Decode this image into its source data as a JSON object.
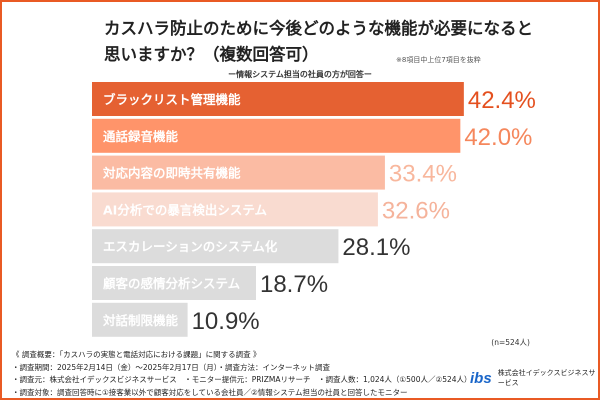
{
  "title_line1": "カスハラ防止のために今後どのような機能が必要になると",
  "title_line2": "思いますか？（複数回答可）",
  "note": "※8項目中上位7項目を抜粋",
  "subtitle": "ー情報システム担当の社員の方が回答ー",
  "sample": "(n=524人)",
  "footer": [
    "《 調査概要：「カスハラの実態と電話対応における課題」に関する調査 》",
    "・調査期間：2025年2月14日（金）〜2025年2月17日（月）・調査方法：インターネット調査",
    "・調査元：株式会社イデックスビジネスサービス　・モニター提供元：PRIZMAリサーチ　・調査人数：1,024人（①500人／②524人）",
    "・調査対象：調査回答時に①接客業以外で顧客対応をしている会社員／②情報システム担当の社員と回答したモニター"
  ],
  "logo": {
    "mark": "ibs",
    "text": "株式会社イデックスビジネスサービス"
  },
  "colors": {
    "frame": "#e95a24",
    "gray_bar": "#dcdcdc",
    "gray_text": "#333333"
  },
  "chart_data": {
    "type": "bar",
    "orientation": "horizontal",
    "unit": "%",
    "categories": [
      "ブラックリスト管理機能",
      "通話録音機能",
      "対応内容の即時共有機能",
      "AI分析での暴言検出システム",
      "エスカレーションのシステム化",
      "顧客の感情分析システム",
      "対話制限機能"
    ],
    "values": [
      42.4,
      42.0,
      33.4,
      32.6,
      28.1,
      18.7,
      10.9
    ],
    "labels": [
      "42.4%",
      "42.0%",
      "33.4%",
      "32.6%",
      "28.1%",
      "18.7%",
      "10.9%"
    ],
    "bar_colors": [
      "#e56132",
      "#ff946a",
      "#fbbba3",
      "#f9dbd0",
      "#dcdcdc",
      "#dcdcdc",
      "#dcdcdc"
    ],
    "label_colors": [
      "#e4501f",
      "#f5875c",
      "#f8b79d",
      "#f5b39b",
      "#333333",
      "#333333",
      "#333333"
    ],
    "bar_text_colors": [
      "#ffffff",
      "#ffffff",
      "#ffffff",
      "#ffffff",
      "#333333",
      "#333333",
      "#333333"
    ]
  }
}
